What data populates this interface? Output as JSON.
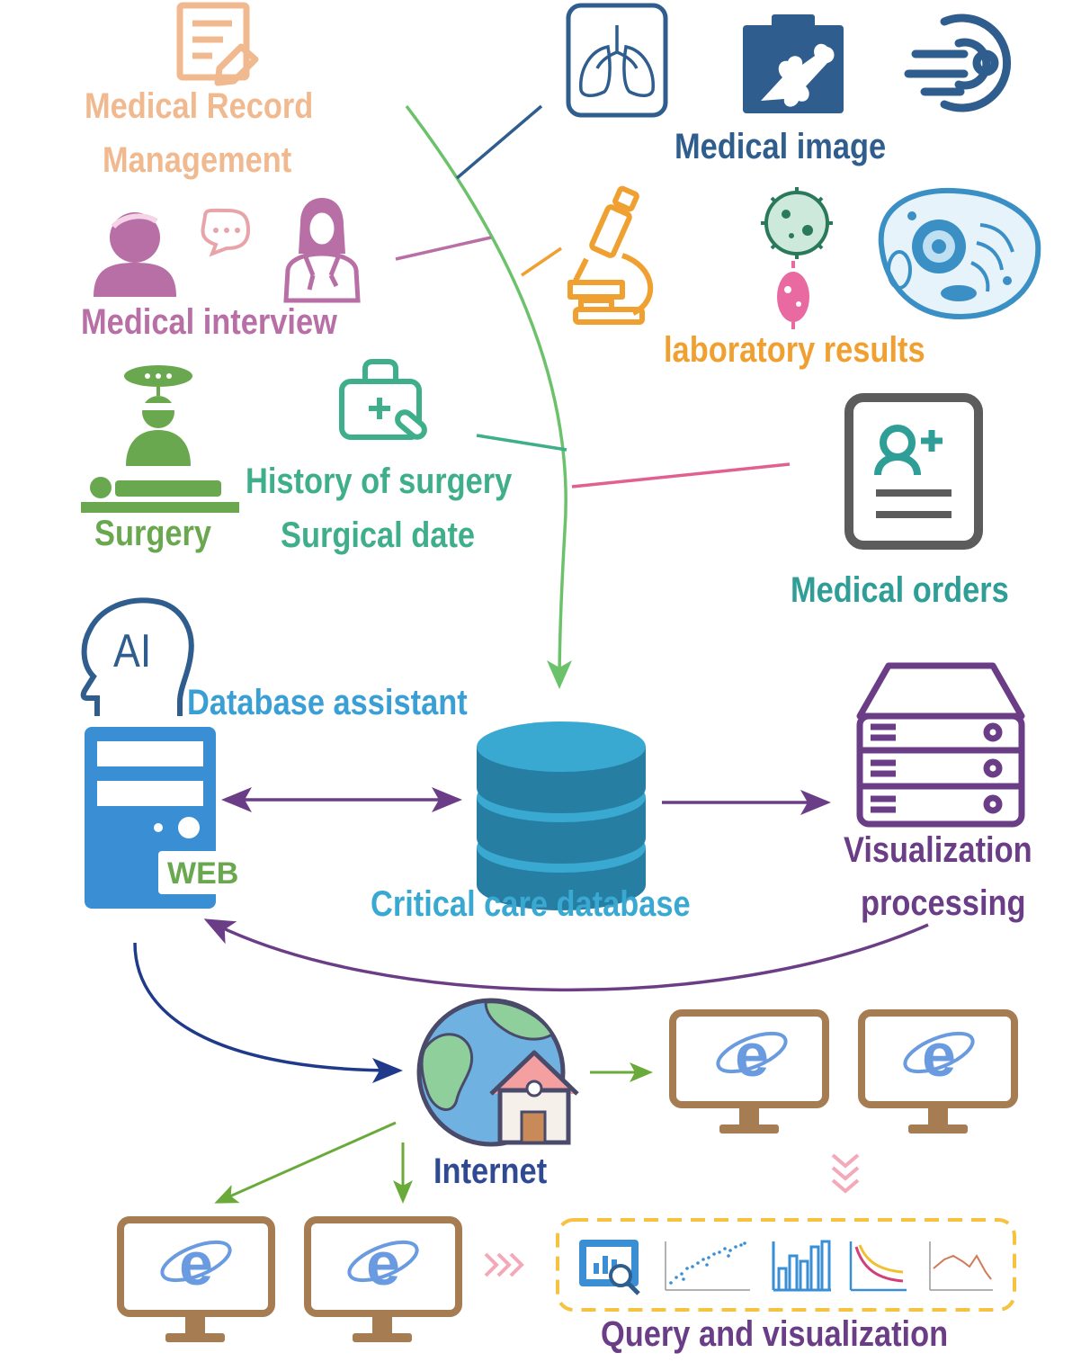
{
  "sources": {
    "medical_record": {
      "line1": "Medical Record",
      "line2": "Management"
    },
    "medical_image": {
      "label": "Medical image"
    },
    "medical_interview": {
      "label": "Medical interview"
    },
    "laboratory_results": {
      "label": "laboratory results"
    },
    "surgery": {
      "label": "Surgery"
    },
    "surgery_history": {
      "line1": "History of surgery",
      "line2": "Surgical date"
    },
    "medical_orders": {
      "label": "Medical orders"
    }
  },
  "system": {
    "assistant_icon_text": "AI",
    "assistant_label": "Database assistant",
    "web_badge": "WEB",
    "database_label": "Critical care database",
    "visualization_line1": "Visualization",
    "visualization_line2": "processing",
    "internet_label": "Internet",
    "query_label": "Query and visualization"
  },
  "colors": {
    "record": "#f0b98f",
    "image": "#2e5d8e",
    "interview": "#b86fa6",
    "lab": "#f0a030",
    "surgery": "#6aa84f",
    "history": "#3fae8a",
    "orders": "#2e9e96",
    "assistant": "#3a9fd4",
    "database": "#3aa9d2",
    "visualization": "#6b3d87",
    "internet": "#2f4a92",
    "query": "#6b3d87",
    "flow": "#6cc26a",
    "monitor": "#a67c52",
    "dashed_box": "#f5c242"
  }
}
